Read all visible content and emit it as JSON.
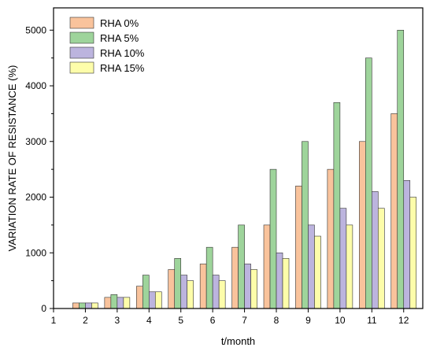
{
  "chart_data": {
    "type": "bar",
    "xlabel": "t/month",
    "ylabel": "VARIATION RATE OF RESISTANCE (%)",
    "x_ticks": [
      "1",
      "2",
      "3",
      "4",
      "5",
      "6",
      "7",
      "8",
      "9",
      "10",
      "11",
      "12"
    ],
    "categories": [
      "2",
      "3",
      "4",
      "5",
      "6",
      "7",
      "8",
      "9",
      "10",
      "11",
      "12"
    ],
    "ylim": [
      0,
      5400
    ],
    "y_ticks": [
      0,
      1000,
      2000,
      3000,
      4000,
      5000
    ],
    "legend_position": "top-left",
    "grid": false,
    "series": [
      {
        "name": "RHA 0%",
        "color": "#f9c39c",
        "values": [
          100,
          200,
          400,
          700,
          800,
          1100,
          1500,
          2200,
          2500,
          3000,
          3500
        ]
      },
      {
        "name": "RHA 5%",
        "color": "#9ed49b",
        "values": [
          100,
          250,
          600,
          900,
          1100,
          1500,
          2500,
          3000,
          3700,
          4500,
          5000
        ]
      },
      {
        "name": "RHA 10%",
        "color": "#bcb4de",
        "values": [
          100,
          200,
          300,
          600,
          600,
          800,
          1000,
          1500,
          1800,
          2100,
          2300
        ]
      },
      {
        "name": "RHA 15%",
        "color": "#fdfdaa",
        "values": [
          100,
          200,
          300,
          500,
          500,
          700,
          900,
          1300,
          1500,
          1800,
          2000
        ]
      }
    ]
  }
}
